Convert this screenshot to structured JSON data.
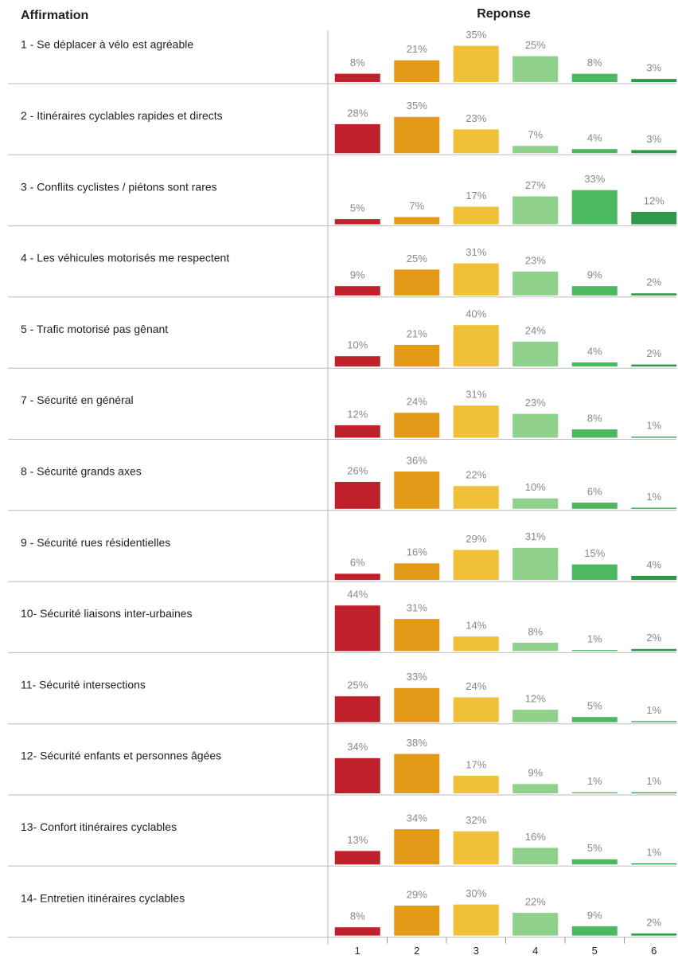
{
  "chart_data": {
    "type": "bar",
    "row_header": "Affirmation",
    "x_label": "Reponse",
    "categories": [
      "1",
      "2",
      "3",
      "4",
      "5",
      "6"
    ],
    "colors": [
      "#c0202a",
      "#e39b17",
      "#f0c038",
      "#8fd18a",
      "#4cb860",
      "#2e9a48"
    ],
    "rows": [
      {
        "name": "1 - Se déplacer à vélo est agréable",
        "values": [
          8,
          21,
          35,
          25,
          8,
          3
        ],
        "value_labels": [
          "8%",
          "21%",
          "35%",
          "25%",
          "8%",
          "3%"
        ]
      },
      {
        "name": "2 - Itinéraires cyclables rapides et directs",
        "values": [
          28,
          35,
          23,
          7,
          4,
          3
        ],
        "value_labels": [
          "28%",
          "35%",
          "23%",
          "7%",
          "4%",
          "3%"
        ]
      },
      {
        "name": "3 - Conflits cyclistes / piétons sont rares",
        "values": [
          5,
          7,
          17,
          27,
          33,
          12
        ],
        "value_labels": [
          "5%",
          "7%",
          "17%",
          "27%",
          "33%",
          "12%"
        ]
      },
      {
        "name": "4 - Les véhicules motorisés me respectent",
        "values": [
          9,
          25,
          31,
          23,
          9,
          2
        ],
        "value_labels": [
          "9%",
          "25%",
          "31%",
          "23%",
          "9%",
          "2%"
        ]
      },
      {
        "name": "5 - Trafic motorisé pas gênant",
        "values": [
          10,
          21,
          40,
          24,
          4,
          2
        ],
        "value_labels": [
          "10%",
          "21%",
          "40%",
          "24%",
          "4%",
          "2%"
        ]
      },
      {
        "name": "7 - Sécurité en général",
        "values": [
          12,
          24,
          31,
          23,
          8,
          1
        ],
        "value_labels": [
          "12%",
          "24%",
          "31%",
          "23%",
          "8%",
          "1%"
        ]
      },
      {
        "name": "8 - Sécurité grands axes",
        "values": [
          26,
          36,
          22,
          10,
          6,
          1
        ],
        "value_labels": [
          "26%",
          "36%",
          "22%",
          "10%",
          "6%",
          "1%"
        ]
      },
      {
        "name": "9 - Sécurité rues résidentielles",
        "values": [
          6,
          16,
          29,
          31,
          15,
          4
        ],
        "value_labels": [
          "6%",
          "16%",
          "29%",
          "31%",
          "15%",
          "4%"
        ]
      },
      {
        "name": "10- Sécurité liaisons inter-urbaines",
        "values": [
          44,
          31,
          14,
          8,
          1,
          2
        ],
        "value_labels": [
          "44%",
          "31%",
          "14%",
          "8%",
          "1%",
          "2%"
        ]
      },
      {
        "name": "11- Sécurité intersections",
        "values": [
          25,
          33,
          24,
          12,
          5,
          1
        ],
        "value_labels": [
          "25%",
          "33%",
          "24%",
          "12%",
          "5%",
          "1%"
        ]
      },
      {
        "name": "12- Sécurité enfants et personnes âgées",
        "values": [
          34,
          38,
          17,
          9,
          1,
          1
        ],
        "value_labels": [
          "34%",
          "38%",
          "17%",
          "9%",
          "1%",
          "1%"
        ]
      },
      {
        "name": "13- Confort itinéraires cyclables",
        "values": [
          13,
          34,
          32,
          16,
          5,
          1
        ],
        "value_labels": [
          "13%",
          "34%",
          "32%",
          "16%",
          "5%",
          "1%"
        ]
      },
      {
        "name": "14- Entretien itinéraires cyclables",
        "values": [
          8,
          29,
          30,
          22,
          9,
          2
        ],
        "value_labels": [
          "8%",
          "29%",
          "30%",
          "22%",
          "9%",
          "2%"
        ]
      }
    ]
  }
}
